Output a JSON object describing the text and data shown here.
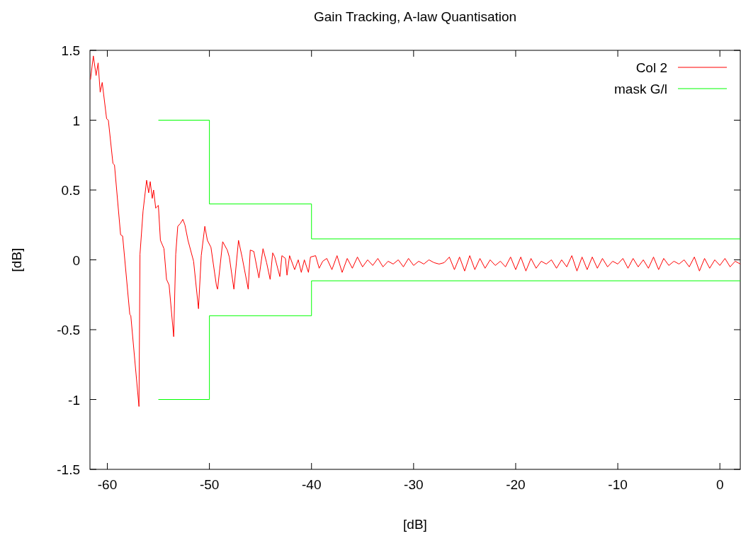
{
  "chart_data": {
    "type": "line",
    "title": "Gain Tracking, A-law Quantisation",
    "xlabel": "[dB]",
    "ylabel": "[dB]",
    "xlim": [
      -61.7,
      2
    ],
    "ylim": [
      -1.5,
      1.5
    ],
    "xticks": [
      -60,
      -50,
      -40,
      -30,
      -20,
      -10,
      0
    ],
    "yticks": [
      -1.5,
      -1,
      -0.5,
      0,
      0.5,
      1,
      1.5
    ],
    "grid": false,
    "legend": "top right",
    "marker": "none",
    "line_style": "solid",
    "series": [
      {
        "name": "Col 2",
        "color": "#ff0000",
        "x": [
          -61.65,
          -61.37,
          -61.1,
          -60.9,
          -60.7,
          -60.5,
          -60.07,
          -59.9,
          -59.45,
          -59.3,
          -58.7,
          -58.5,
          -57.8,
          -57.7,
          -56.9,
          -56.8,
          -56.5,
          -56.15,
          -55.95,
          -55.8,
          -55.6,
          -55.47,
          -55.26,
          -55,
          -54.8,
          -54.45,
          -54.2,
          -53.95,
          -53.5,
          -53.3,
          -53.1,
          -52.85,
          -52.6,
          -52.4,
          -52.1,
          -51.55,
          -51.07,
          -50.8,
          -50.45,
          -50.2,
          -49.85,
          -49.3,
          -49.2,
          -48.7,
          -48.25,
          -48.05,
          -47.6,
          -47.15,
          -46.8,
          -46.2,
          -46,
          -45.65,
          -45.15,
          -44.75,
          -44.4,
          -44.05,
          -43.8,
          -43.6,
          -43.1,
          -42.9,
          -42.55,
          -42.4,
          -42.15,
          -41.65,
          -41.3,
          -41,
          -40.7,
          -40.3,
          -40.1,
          -39.6,
          -39.25,
          -38.9,
          -38.5,
          -38,
          -37.5,
          -37,
          -36.5,
          -36,
          -35.5,
          -35,
          -34.5,
          -34,
          -33.5,
          -33,
          -32.5,
          -32,
          -31.5,
          -31,
          -30.5,
          -30,
          -29.5,
          -29,
          -28.5,
          -28,
          -27.5,
          -27,
          -26.5,
          -26,
          -25.5,
          -25,
          -24.5,
          -24,
          -23.5,
          -23,
          -22.5,
          -22,
          -21.5,
          -21,
          -20.5,
          -20,
          -19.5,
          -19,
          -18.5,
          -18,
          -17.5,
          -17,
          -16.5,
          -16,
          -15.5,
          -15,
          -14.5,
          -14,
          -13.5,
          -13,
          -12.5,
          -12,
          -11.5,
          -11,
          -10.5,
          -10,
          -9.5,
          -9,
          -8.5,
          -8,
          -7.5,
          -7,
          -6.5,
          -6,
          -5.5,
          -5,
          -4.5,
          -4,
          -3.5,
          -3,
          -2.5,
          -2,
          -1.5,
          -1,
          -0.5,
          0,
          0.5,
          1,
          1.5,
          2
        ],
        "values": [
          1.29,
          1.46,
          1.32,
          1.41,
          1.2,
          1.27,
          1.01,
          1,
          0.69,
          0.68,
          0.18,
          0.17,
          -0.39,
          -0.4,
          -1.05,
          0.04,
          0.35,
          0.57,
          0.48,
          0.56,
          0.44,
          0.5,
          0.37,
          0.39,
          0.14,
          0.08,
          -0.14,
          -0.18,
          -0.55,
          0.04,
          0.24,
          0.26,
          0.29,
          0.25,
          0.14,
          -0.01,
          -0.35,
          0.03,
          0.24,
          0.14,
          0.09,
          -0.19,
          -0.21,
          0.13,
          0.07,
          0.02,
          -0.21,
          0.14,
          0.02,
          -0.21,
          0.07,
          0.06,
          -0.13,
          0.08,
          -0.02,
          -0.14,
          0.05,
          0.02,
          -0.12,
          0.03,
          0.01,
          -0.11,
          0.03,
          -0.07,
          0,
          -0.09,
          0,
          -0.09,
          0.02,
          0.03,
          -0.06,
          -0.01,
          0.01,
          -0.07,
          0.03,
          -0.09,
          0.01,
          -0.06,
          0.02,
          -0.05,
          0,
          -0.04,
          0.01,
          -0.05,
          -0.01,
          -0.03,
          0,
          -0.05,
          0.01,
          -0.04,
          -0.01,
          -0.03,
          0,
          -0.02,
          -0.03,
          -0.02,
          0.02,
          -0.07,
          0.02,
          -0.08,
          0.03,
          -0.07,
          0.01,
          -0.06,
          0,
          -0.04,
          -0.01,
          -0.05,
          0.02,
          -0.07,
          0.02,
          -0.08,
          0.01,
          -0.06,
          -0.01,
          -0.03,
          0,
          -0.06,
          0,
          -0.05,
          0.03,
          -0.08,
          0.02,
          -0.07,
          0.02,
          -0.06,
          0.01,
          -0.05,
          -0.01,
          -0.03,
          0.01,
          -0.06,
          0.01,
          -0.05,
          0,
          -0.06,
          0.02,
          -0.07,
          0.01,
          -0.04,
          -0.01,
          -0.03,
          0,
          -0.05,
          0.02,
          -0.08,
          0.01,
          -0.06,
          0,
          -0.04,
          0.01,
          -0.05,
          -0.01,
          -0.03
        ]
      },
      {
        "name": "mask G/l",
        "color": "#00ff00",
        "x": [
          -55,
          -50,
          -50,
          -40,
          -40,
          2
        ],
        "values": [
          1,
          1,
          0.4,
          0.4,
          0.15,
          0.15
        ]
      },
      {
        "color": "#00ff00",
        "x": [
          -55,
          -50,
          -50,
          -40,
          -40,
          2
        ],
        "values": [
          -1,
          -1,
          -0.4,
          -0.4,
          -0.15,
          -0.15
        ]
      }
    ]
  }
}
